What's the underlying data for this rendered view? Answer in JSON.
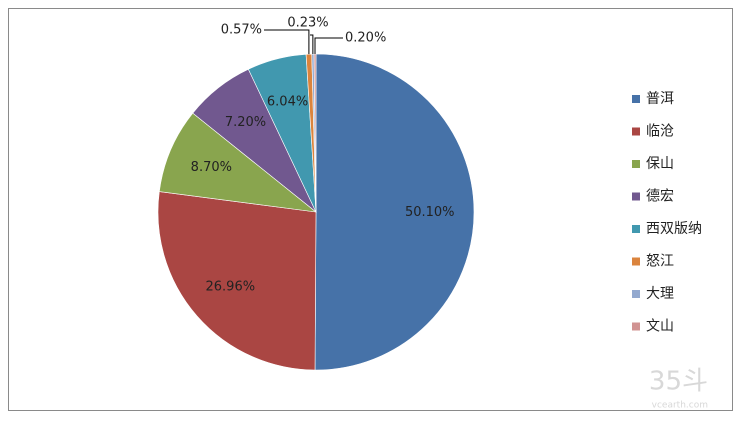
{
  "chart_data": {
    "type": "pie",
    "categories": [
      "普洱",
      "临沧",
      "保山",
      "德宏",
      "西双版纳",
      "怒江",
      "大理",
      "文山"
    ],
    "values": [
      50.1,
      26.96,
      8.7,
      7.2,
      6.04,
      0.57,
      0.23,
      0.2
    ],
    "value_labels": [
      "50.10%",
      "26.96%",
      "8.70%",
      "7.20%",
      "6.04%",
      "0.57%",
      "0.23%",
      "0.20%"
    ],
    "colors": [
      "#4672a8",
      "#aa4643",
      "#89a54e",
      "#71588f",
      "#4198af",
      "#db843d",
      "#93a9cf",
      "#d19392"
    ],
    "legend": "right"
  },
  "watermark": {
    "mark": "35斗",
    "site": "vcearth.com"
  }
}
